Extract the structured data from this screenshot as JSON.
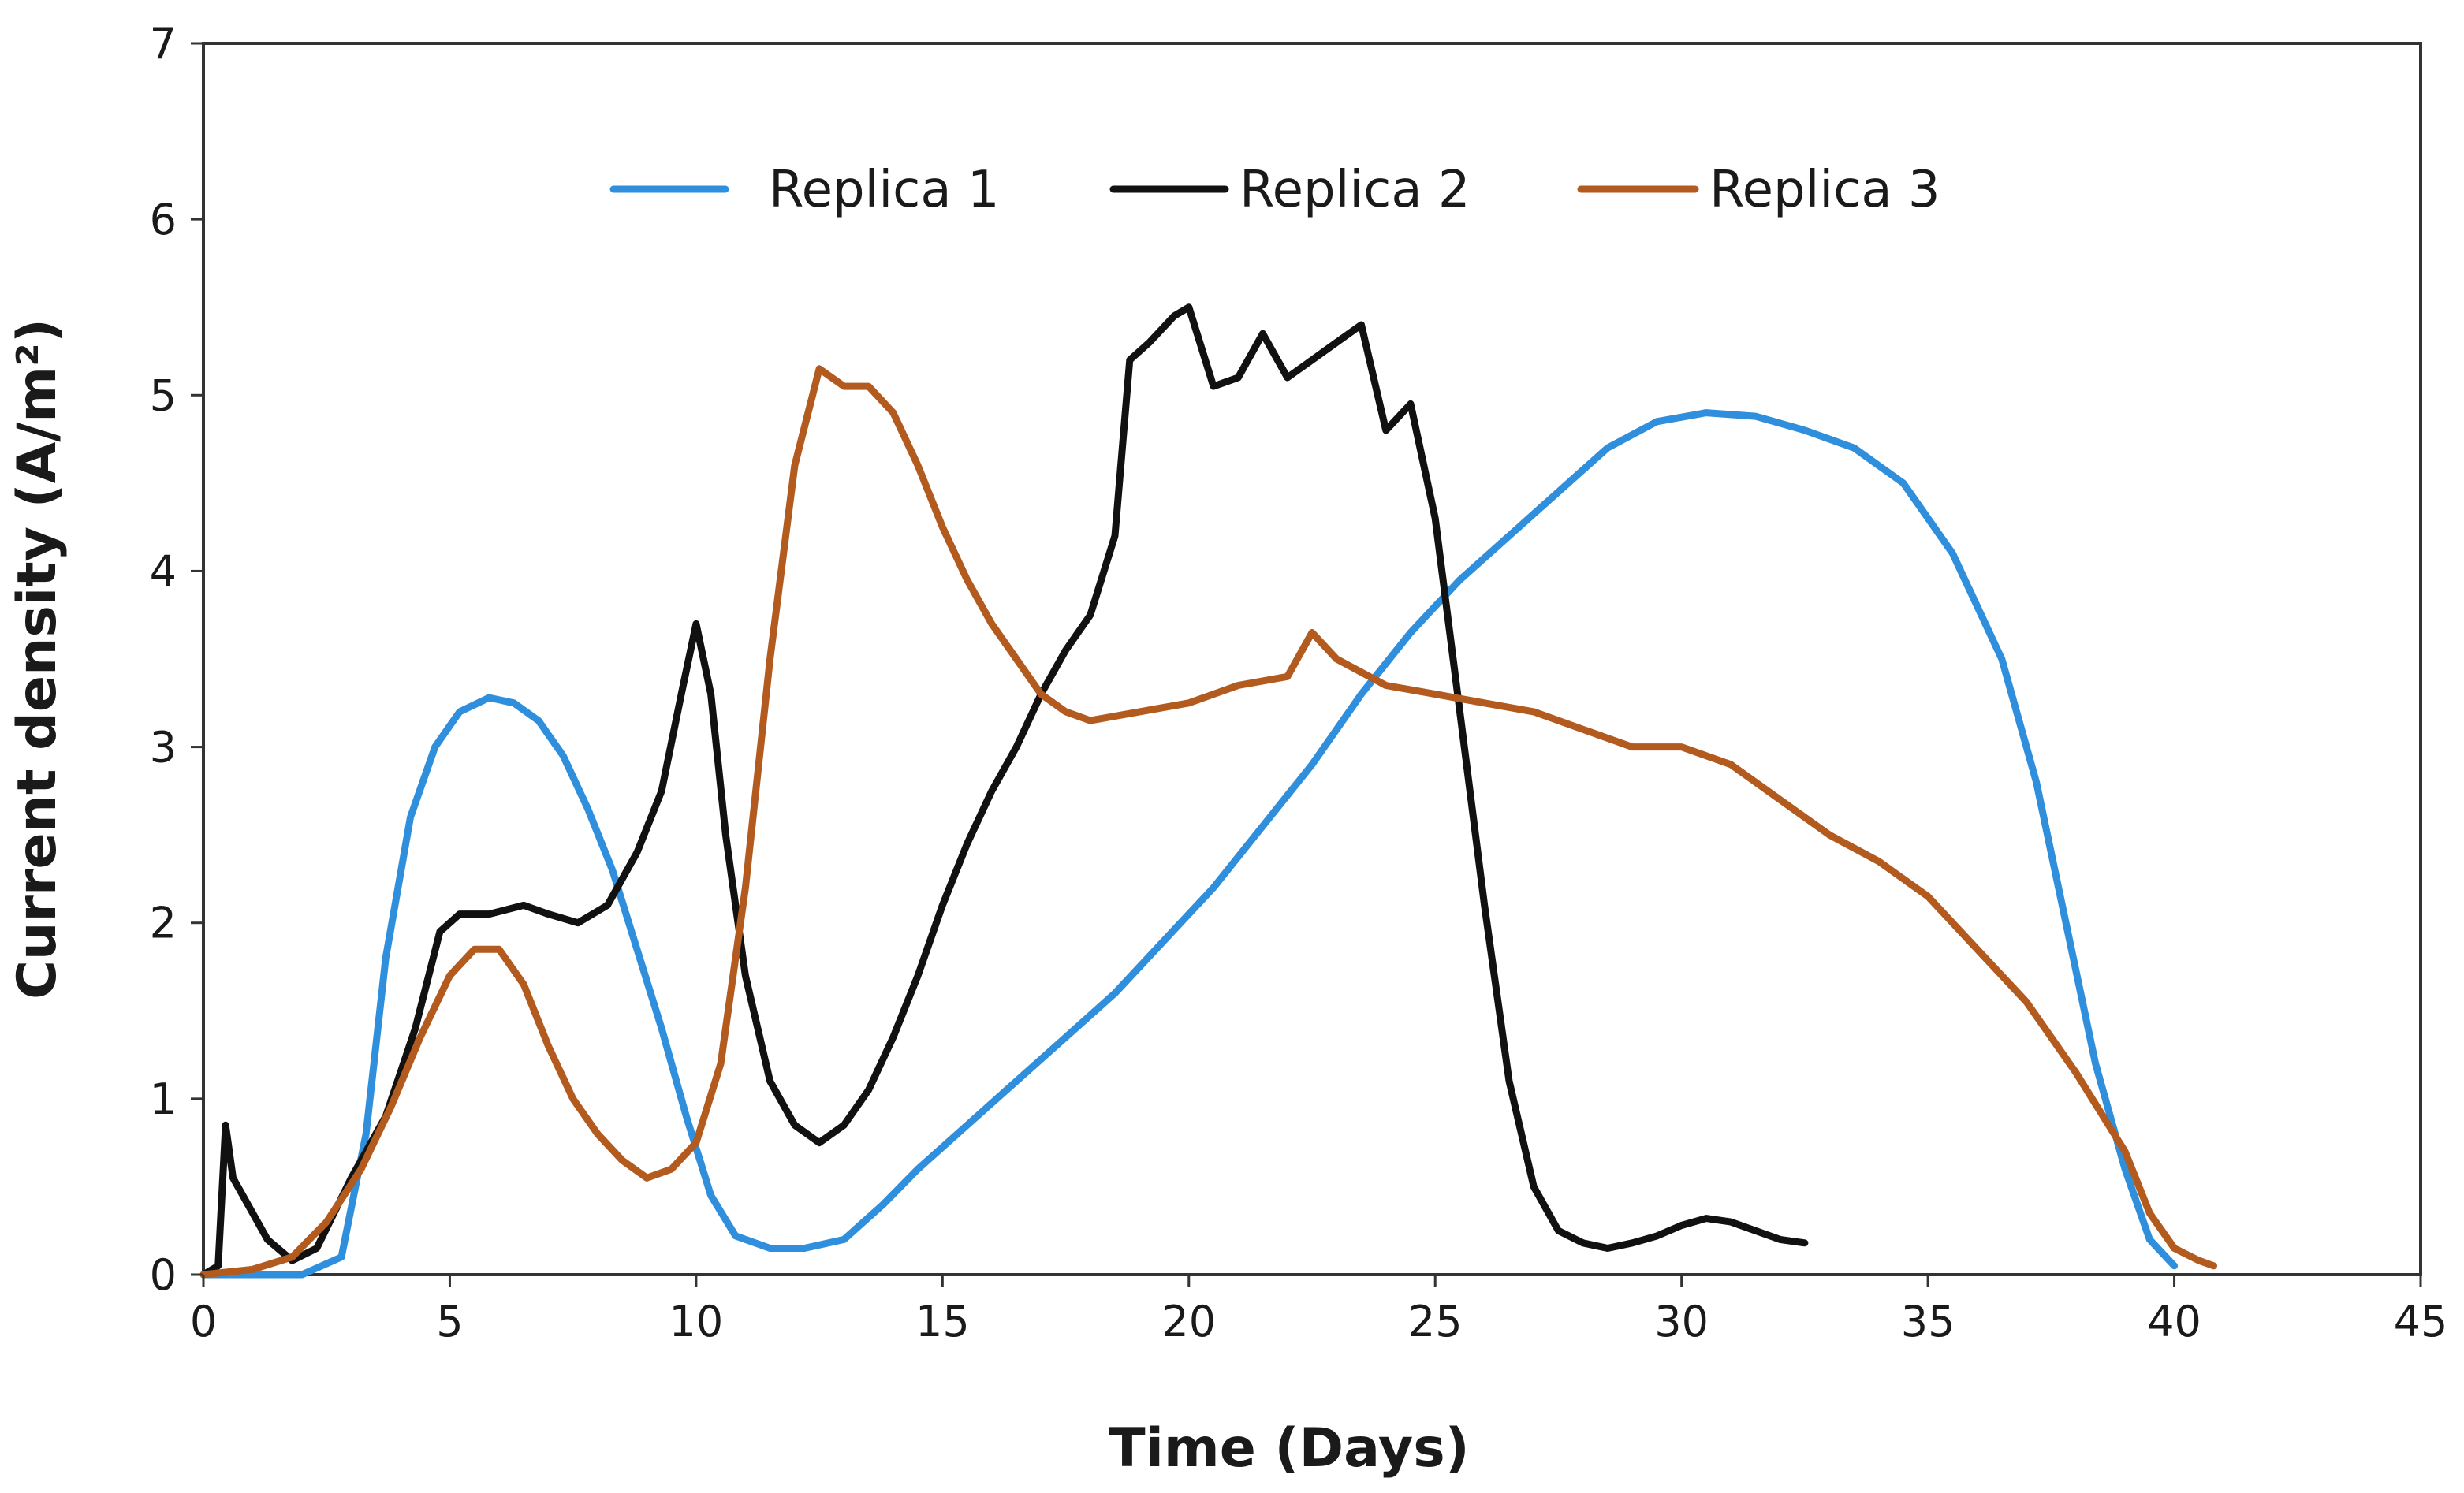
{
  "chart_data": {
    "type": "line",
    "title": "",
    "xlabel": "Time (Days)",
    "ylabel": "Current density  (A/m²)",
    "xlim": [
      0,
      45
    ],
    "ylim": [
      0,
      7
    ],
    "xticks": [
      0,
      5,
      10,
      15,
      20,
      25,
      30,
      35,
      40,
      45
    ],
    "yticks": [
      0,
      1,
      2,
      3,
      4,
      5,
      6,
      7
    ],
    "grid": false,
    "legend_position": "top-center",
    "series": [
      {
        "name": "Replica 1",
        "color": "#2f8fdc",
        "x": [
          0,
          2,
          2.8,
          3.3,
          3.7,
          4.2,
          4.7,
          5.2,
          5.8,
          6.3,
          6.8,
          7.3,
          7.8,
          8.3,
          8.8,
          9.3,
          9.8,
          10.3,
          10.8,
          11.5,
          12.2,
          13,
          13.8,
          14.5,
          15.5,
          16.5,
          17.5,
          18.5,
          19.5,
          20.5,
          21.5,
          22.5,
          23.5,
          24.5,
          25.5,
          26.5,
          27.5,
          28.5,
          29.5,
          30.5,
          31.5,
          32.5,
          33.5,
          34.5,
          35.5,
          36.5,
          37.2,
          37.8,
          38.4,
          39,
          39.5,
          40
        ],
        "y": [
          0,
          0,
          0.1,
          0.8,
          1.8,
          2.6,
          3.0,
          3.2,
          3.28,
          3.25,
          3.15,
          2.95,
          2.65,
          2.3,
          1.85,
          1.4,
          0.9,
          0.45,
          0.22,
          0.15,
          0.15,
          0.2,
          0.4,
          0.6,
          0.85,
          1.1,
          1.35,
          1.6,
          1.9,
          2.2,
          2.55,
          2.9,
          3.3,
          3.65,
          3.95,
          4.2,
          4.45,
          4.7,
          4.85,
          4.9,
          4.88,
          4.8,
          4.7,
          4.5,
          4.1,
          3.5,
          2.8,
          2.0,
          1.2,
          0.6,
          0.2,
          0.05
        ]
      },
      {
        "name": "Replica 2",
        "color": "#111111",
        "x": [
          0,
          0.3,
          0.45,
          0.6,
          0.9,
          1.3,
          1.8,
          2.3,
          3,
          3.7,
          4.3,
          4.8,
          5.2,
          5.8,
          6.5,
          7,
          7.6,
          8.2,
          8.8,
          9.3,
          9.7,
          10,
          10.3,
          10.6,
          11,
          11.5,
          12,
          12.5,
          13,
          13.5,
          14,
          14.5,
          15,
          15.5,
          16,
          16.5,
          17,
          17.5,
          18,
          18.5,
          18.8,
          19.2,
          19.7,
          20,
          20.5,
          21,
          21.5,
          22,
          22.5,
          23,
          23.5,
          24,
          24.5,
          25,
          25.5,
          26,
          26.5,
          27,
          27.5,
          28,
          28.5,
          29,
          29.5,
          30,
          30.5,
          31,
          31.5,
          32,
          32.5
        ],
        "y": [
          0,
          0.05,
          0.85,
          0.55,
          0.4,
          0.2,
          0.08,
          0.15,
          0.55,
          0.9,
          1.4,
          1.95,
          2.05,
          2.05,
          2.1,
          2.05,
          2.0,
          2.1,
          2.4,
          2.75,
          3.3,
          3.7,
          3.3,
          2.5,
          1.7,
          1.1,
          0.85,
          0.75,
          0.85,
          1.05,
          1.35,
          1.7,
          2.1,
          2.45,
          2.75,
          3.0,
          3.3,
          3.55,
          3.75,
          4.2,
          5.2,
          5.3,
          5.45,
          5.5,
          5.05,
          5.1,
          5.35,
          5.1,
          5.2,
          5.3,
          5.4,
          4.8,
          4.95,
          4.3,
          3.2,
          2.1,
          1.1,
          0.5,
          0.25,
          0.18,
          0.15,
          0.18,
          0.22,
          0.28,
          0.32,
          0.3,
          0.25,
          0.2,
          0.18
        ]
      },
      {
        "name": "Replica 3",
        "color": "#b35a1f",
        "x": [
          0,
          1,
          1.8,
          2.5,
          3.2,
          3.8,
          4.4,
          5,
          5.5,
          6,
          6.5,
          7,
          7.5,
          8,
          8.5,
          9,
          9.5,
          10,
          10.5,
          11,
          11.5,
          12,
          12.5,
          13,
          13.5,
          14,
          14.5,
          15,
          15.5,
          16,
          16.5,
          17,
          17.5,
          18,
          19,
          20,
          21,
          22,
          22.5,
          23,
          24,
          25,
          26,
          27,
          28,
          29,
          30,
          31,
          32,
          33,
          34,
          35,
          36,
          37,
          38,
          39,
          39.5,
          40,
          40.5,
          40.8
        ],
        "y": [
          0,
          0.03,
          0.1,
          0.3,
          0.6,
          0.95,
          1.35,
          1.7,
          1.85,
          1.85,
          1.65,
          1.3,
          1.0,
          0.8,
          0.65,
          0.55,
          0.6,
          0.75,
          1.2,
          2.2,
          3.5,
          4.6,
          5.15,
          5.05,
          5.05,
          4.9,
          4.6,
          4.25,
          3.95,
          3.7,
          3.5,
          3.3,
          3.2,
          3.15,
          3.2,
          3.25,
          3.35,
          3.4,
          3.65,
          3.5,
          3.35,
          3.3,
          3.25,
          3.2,
          3.1,
          3.0,
          3.0,
          2.9,
          2.7,
          2.5,
          2.35,
          2.15,
          1.85,
          1.55,
          1.15,
          0.7,
          0.35,
          0.15,
          0.08,
          0.05
        ]
      }
    ]
  }
}
